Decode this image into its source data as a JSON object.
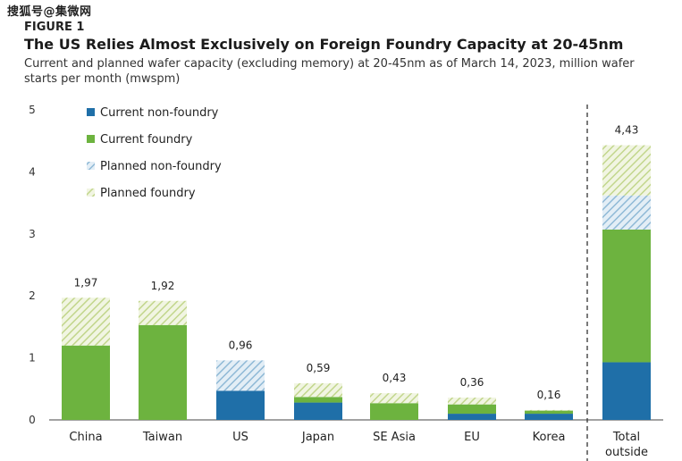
{
  "watermark": "搜狐号@集微网",
  "figure_label": "FIGURE 1",
  "chart_data": {
    "type": "bar",
    "stacked": true,
    "title": "The US Relies Almost Exclusively on Foreign Foundry Capacity at 20-45nm",
    "subtitle": "Current and planned wafer capacity (excluding memory) at 20-45nm as of March 14, 2023, million wafer starts per month (mwspm)",
    "xlabel": "",
    "ylabel": "",
    "ylim": [
      0,
      5
    ],
    "yticks": [
      "0",
      "1",
      "2",
      "3",
      "4",
      "5"
    ],
    "categories": [
      "China",
      "Taiwan",
      "US",
      "Japan",
      "SE Asia",
      "EU",
      "Korea",
      "Total outside"
    ],
    "totals": [
      "1,97",
      "1,92",
      "0,96",
      "0,59",
      "0,43",
      "0,36",
      "0,16",
      "4,43"
    ],
    "series": [
      {
        "name": "Current non-foundry",
        "color": "#1f6fa8",
        "pattern": "solid",
        "values": [
          0,
          0,
          0.47,
          0.28,
          0,
          0.1,
          0.1,
          0.93
        ]
      },
      {
        "name": "Current foundry",
        "color": "#6db33f",
        "pattern": "solid",
        "values": [
          1.2,
          1.53,
          0,
          0.09,
          0.27,
          0.15,
          0.05,
          2.14
        ]
      },
      {
        "name": "Planned non-foundry",
        "color": "#9cc3dd",
        "pattern": "hatch",
        "values": [
          0,
          0,
          0.49,
          0,
          0,
          0,
          0,
          0.55
        ]
      },
      {
        "name": "Planned foundry",
        "color": "#c9db9a",
        "pattern": "hatch",
        "values": [
          0.77,
          0.39,
          0,
          0.22,
          0.16,
          0.11,
          0.01,
          0.81
        ]
      }
    ],
    "separator_before": "Total outside"
  }
}
